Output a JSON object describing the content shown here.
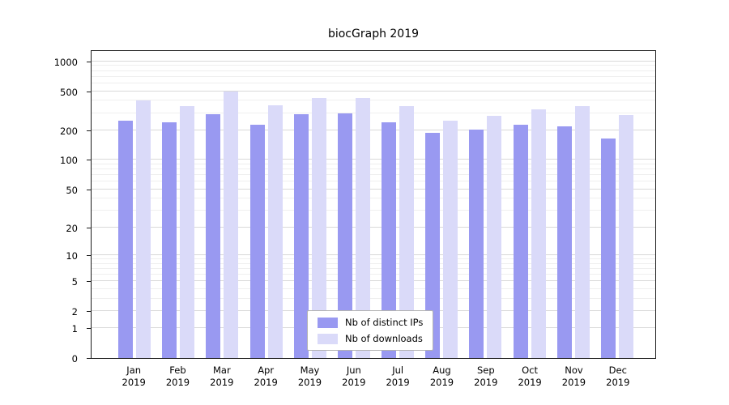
{
  "title": "biocGraph 2019",
  "colors": {
    "ips": "#9999f1",
    "downloads": "#dadaf9"
  },
  "chart_data": {
    "type": "bar",
    "title": "biocGraph 2019",
    "categories": [
      "Jan",
      "Feb",
      "Mar",
      "Apr",
      "May",
      "Jun",
      "Jul",
      "Aug",
      "Sep",
      "Oct",
      "Nov",
      "Dec"
    ],
    "category_year": "2019",
    "series": [
      {
        "name": "Nb of distinct IPs",
        "color": "#9999f1",
        "values": [
          250,
          240,
          290,
          230,
          295,
          300,
          240,
          190,
          205,
          230,
          220,
          165
        ]
      },
      {
        "name": "Nb of downloads",
        "color": "#dadaf9",
        "values": [
          400,
          350,
          500,
          360,
          430,
          425,
          350,
          250,
          280,
          330,
          350,
          285
        ]
      }
    ],
    "yticks": [
      0,
      1,
      2,
      5,
      10,
      20,
      50,
      100,
      200,
      500,
      1000
    ],
    "yscale": "log10(v+1)",
    "ylim": [
      0,
      1325
    ],
    "xlabel": "",
    "ylabel": "",
    "grid": true,
    "legend_position": "inside-bottom-center"
  }
}
